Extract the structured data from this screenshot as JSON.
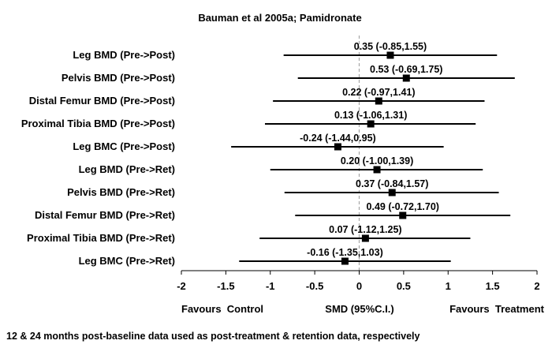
{
  "chart_data": {
    "type": "forest",
    "title": "Bauman et al 2005a; Pamidronate",
    "xlabel": "SMD (95%C.I.)",
    "favours_left": "Favours  Control",
    "favours_right": "Favours  Treatment",
    "xlim": [
      -2,
      2
    ],
    "xticks": [
      {
        "value": -2,
        "label": "-2"
      },
      {
        "value": -1.5,
        "label": "-1.5"
      },
      {
        "value": -1,
        "label": "-1"
      },
      {
        "value": -0.5,
        "label": "-0.5"
      },
      {
        "value": 0,
        "label": "0"
      },
      {
        "value": 0.5,
        "label": "0.5"
      },
      {
        "value": 1,
        "label": "1"
      },
      {
        "value": 1.5,
        "label": "1.5"
      },
      {
        "value": 2,
        "label": "2"
      }
    ],
    "reference_line": 0,
    "footnote": "12 & 24 months post-baseline data used as post-treatment & retention data, respectively",
    "rows": [
      {
        "label": "Leg BMD (Pre->Post)",
        "estimate": 0.35,
        "lower": -0.85,
        "upper": 1.55,
        "text": "0.35 (-0.85,1.55)"
      },
      {
        "label": "Pelvis BMD (Pre->Post)",
        "estimate": 0.53,
        "lower": -0.69,
        "upper": 1.75,
        "text": "0.53 (-0.69,1.75)"
      },
      {
        "label": "Distal Femur BMD (Pre->Post)",
        "estimate": 0.22,
        "lower": -0.97,
        "upper": 1.41,
        "text": "0.22 (-0.97,1.41)"
      },
      {
        "label": "Proximal Tibia BMD (Pre->Post)",
        "estimate": 0.13,
        "lower": -1.06,
        "upper": 1.31,
        "text": "0.13 (-1.06,1.31)"
      },
      {
        "label": "Leg BMC (Pre->Post)",
        "estimate": -0.24,
        "lower": -1.44,
        "upper": 0.95,
        "text": "-0.24 (-1.44,0.95)"
      },
      {
        "label": "Leg BMD (Pre->Ret)",
        "estimate": 0.2,
        "lower": -1.0,
        "upper": 1.39,
        "text": "0.20 (-1.00,1.39)"
      },
      {
        "label": "Pelvis BMD (Pre->Ret)",
        "estimate": 0.37,
        "lower": -0.84,
        "upper": 1.57,
        "text": "0.37 (-0.84,1.57)"
      },
      {
        "label": "Distal Femur BMD (Pre->Ret)",
        "estimate": 0.49,
        "lower": -0.72,
        "upper": 1.7,
        "text": "0.49 (-0.72,1.70)"
      },
      {
        "label": "Proximal Tibia BMD (Pre->Ret)",
        "estimate": 0.07,
        "lower": -1.12,
        "upper": 1.25,
        "text": "0.07 (-1.12,1.25)"
      },
      {
        "label": "Leg BMC (Pre->Ret)",
        "estimate": -0.16,
        "lower": -1.35,
        "upper": 1.03,
        "text": "-0.16 (-1.35,1.03)"
      }
    ],
    "colors": {
      "line": "#000000",
      "marker": "#000000",
      "reference": "#a6a6a6"
    }
  }
}
